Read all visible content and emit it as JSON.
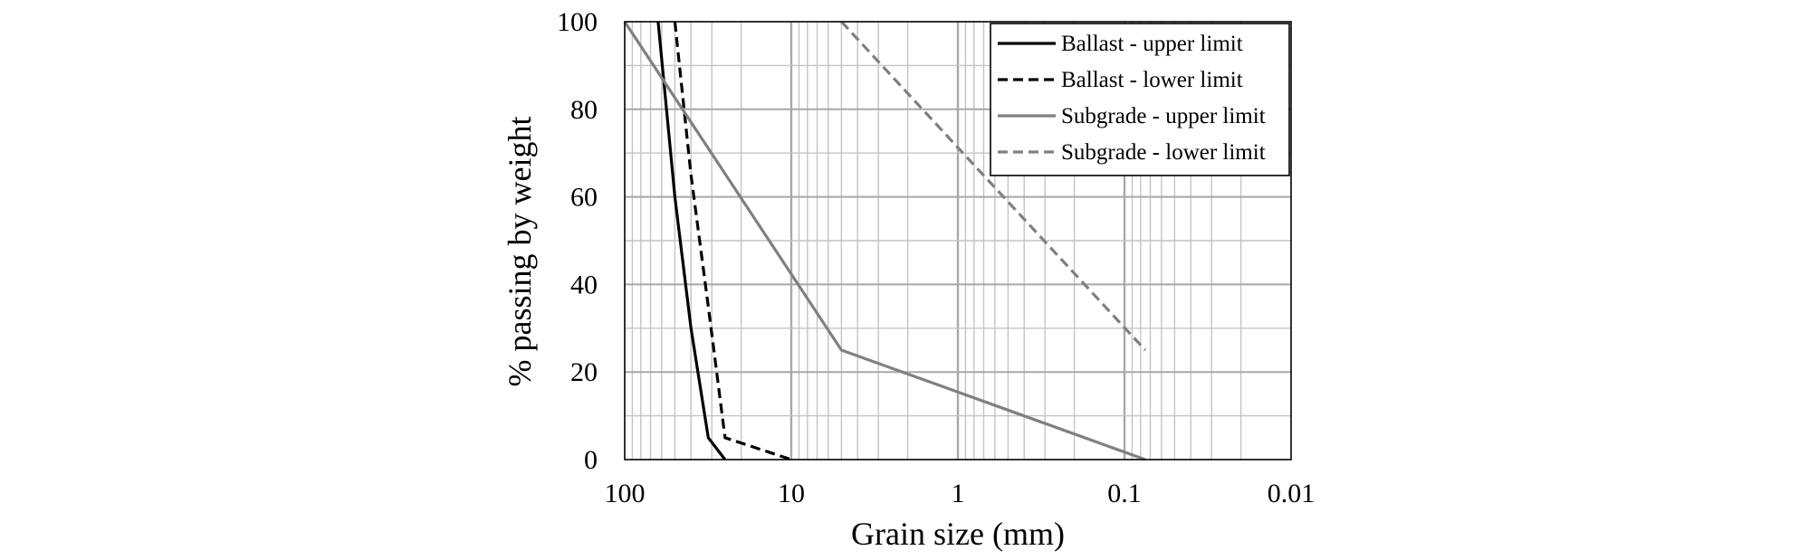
{
  "chart_data": {
    "type": "line",
    "x_scale": "log",
    "x_reversed": true,
    "xlim": [
      100,
      0.01
    ],
    "ylim": [
      0,
      100
    ],
    "xlabel": "Grain size (mm)",
    "ylabel": "% passing by weight",
    "x_ticks": [
      100,
      10,
      1,
      0.1,
      0.01
    ],
    "x_tick_labels": [
      "100",
      "10",
      "1",
      "0.1",
      "0.01"
    ],
    "y_ticks": [
      0,
      20,
      40,
      60,
      80,
      100
    ],
    "y_tick_labels": [
      "0",
      "20",
      "40",
      "60",
      "80",
      "100"
    ],
    "y_minor_step": 10,
    "grid": true,
    "legend_position": "top-right",
    "series": [
      {
        "name": "Ballast - upper limit",
        "color": "#000000",
        "dash": "solid",
        "points": [
          [
            63,
            100
          ],
          [
            50,
            60
          ],
          [
            40,
            30
          ],
          [
            31.5,
            5
          ],
          [
            25,
            0
          ]
        ]
      },
      {
        "name": "Ballast - lower limit",
        "color": "#000000",
        "dash": "dashed",
        "points": [
          [
            50,
            100
          ],
          [
            40,
            65
          ],
          [
            31.5,
            35
          ],
          [
            25,
            5
          ],
          [
            10,
            0
          ]
        ]
      },
      {
        "name": "Subgrade - upper limit",
        "color": "#808080",
        "dash": "solid",
        "points": [
          [
            100,
            100
          ],
          [
            5,
            25
          ],
          [
            0.075,
            0
          ]
        ]
      },
      {
        "name": "Subgrade - lower limit",
        "color": "#808080",
        "dash": "dashed",
        "points": [
          [
            5,
            100
          ],
          [
            0.075,
            25
          ]
        ]
      }
    ]
  }
}
